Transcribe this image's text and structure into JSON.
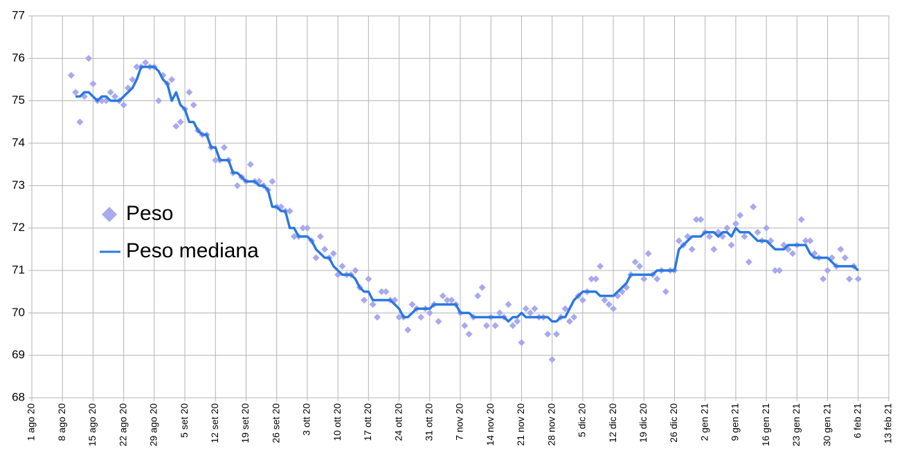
{
  "chart_data": {
    "type": "scatter",
    "x": [
      "2020-08-10",
      "2020-08-11",
      "2020-08-12",
      "2020-08-13",
      "2020-08-14",
      "2020-08-15",
      "2020-08-16",
      "2020-08-17",
      "2020-08-18",
      "2020-08-19",
      "2020-08-20",
      "2020-08-21",
      "2020-08-22",
      "2020-08-23",
      "2020-08-24",
      "2020-08-25",
      "2020-08-26",
      "2020-08-27",
      "2020-08-28",
      "2020-08-29",
      "2020-08-30",
      "2020-08-31",
      "2020-09-01",
      "2020-09-02",
      "2020-09-03",
      "2020-09-04",
      "2020-09-05",
      "2020-09-06",
      "2020-09-07",
      "2020-09-08",
      "2020-09-09",
      "2020-09-10",
      "2020-09-11",
      "2020-09-12",
      "2020-09-13",
      "2020-09-14",
      "2020-09-15",
      "2020-09-16",
      "2020-09-17",
      "2020-09-18",
      "2020-09-19",
      "2020-09-20",
      "2020-09-21",
      "2020-09-22",
      "2020-09-23",
      "2020-09-24",
      "2020-09-25",
      "2020-09-26",
      "2020-09-27",
      "2020-09-28",
      "2020-09-29",
      "2020-09-30",
      "2020-10-01",
      "2020-10-02",
      "2020-10-03",
      "2020-10-04",
      "2020-10-05",
      "2020-10-06",
      "2020-10-07",
      "2020-10-08",
      "2020-10-09",
      "2020-10-10",
      "2020-10-11",
      "2020-10-12",
      "2020-10-13",
      "2020-10-14",
      "2020-10-15",
      "2020-10-16",
      "2020-10-17",
      "2020-10-18",
      "2020-10-19",
      "2020-10-20",
      "2020-10-21",
      "2020-10-22",
      "2020-10-23",
      "2020-10-24",
      "2020-10-25",
      "2020-10-26",
      "2020-10-27",
      "2020-10-28",
      "2020-10-29",
      "2020-10-30",
      "2020-10-31",
      "2020-11-01",
      "2020-11-02",
      "2020-11-03",
      "2020-11-04",
      "2020-11-05",
      "2020-11-06",
      "2020-11-07",
      "2020-11-08",
      "2020-11-09",
      "2020-11-10",
      "2020-11-11",
      "2020-11-12",
      "2020-11-13",
      "2020-11-14",
      "2020-11-15",
      "2020-11-16",
      "2020-11-17",
      "2020-11-18",
      "2020-11-19",
      "2020-11-20",
      "2020-11-21",
      "2020-11-22",
      "2020-11-23",
      "2020-11-24",
      "2020-11-25",
      "2020-11-26",
      "2020-11-27",
      "2020-11-28",
      "2020-11-29",
      "2020-11-30",
      "2020-12-01",
      "2020-12-02",
      "2020-12-03",
      "2020-12-04",
      "2020-12-05",
      "2020-12-06",
      "2020-12-07",
      "2020-12-08",
      "2020-12-09",
      "2020-12-10",
      "2020-12-11",
      "2020-12-12",
      "2020-12-13",
      "2020-12-14",
      "2020-12-15",
      "2020-12-16",
      "2020-12-17",
      "2020-12-18",
      "2020-12-19",
      "2020-12-20",
      "2020-12-21",
      "2020-12-22",
      "2020-12-23",
      "2020-12-24",
      "2020-12-25",
      "2020-12-26",
      "2020-12-27",
      "2020-12-28",
      "2020-12-29",
      "2020-12-30",
      "2020-12-31",
      "2021-01-01",
      "2021-01-02",
      "2021-01-03",
      "2021-01-04",
      "2021-01-05",
      "2021-01-06",
      "2021-01-07",
      "2021-01-08",
      "2021-01-09",
      "2021-01-10",
      "2021-01-11",
      "2021-01-12",
      "2021-01-13",
      "2021-01-14",
      "2021-01-15",
      "2021-01-16",
      "2021-01-17",
      "2021-01-18",
      "2021-01-19",
      "2021-01-20",
      "2021-01-21",
      "2021-01-22",
      "2021-01-23",
      "2021-01-24",
      "2021-01-25",
      "2021-01-26",
      "2021-01-27",
      "2021-01-28",
      "2021-01-29",
      "2021-01-30",
      "2021-01-31",
      "2021-02-01",
      "2021-02-02",
      "2021-02-03",
      "2021-02-04",
      "2021-02-05",
      "2021-02-06"
    ],
    "series": [
      {
        "name": "Peso",
        "type": "scatter",
        "color": "#a9a9ee",
        "values": [
          75.6,
          75.2,
          74.5,
          75.1,
          76.0,
          75.4,
          75.0,
          75.0,
          75.0,
          75.2,
          75.1,
          75.0,
          74.9,
          75.3,
          75.5,
          75.8,
          75.8,
          75.9,
          75.8,
          75.8,
          75.0,
          75.6,
          75.4,
          75.5,
          74.4,
          74.5,
          74.8,
          75.2,
          74.9,
          74.3,
          74.2,
          74.2,
          73.9,
          73.6,
          73.6,
          73.9,
          73.6,
          73.3,
          73.0,
          73.2,
          73.1,
          73.5,
          73.1,
          73.1,
          73.0,
          72.9,
          73.1,
          72.5,
          72.5,
          72.4,
          72.4,
          71.8,
          71.8,
          72.0,
          72.0,
          71.7,
          71.3,
          71.8,
          71.5,
          71.3,
          71.4,
          70.9,
          71.1,
          70.9,
          70.9,
          71.0,
          70.6,
          70.3,
          70.8,
          70.2,
          69.9,
          70.5,
          70.5,
          70.3,
          70.3,
          69.9,
          69.9,
          69.6,
          70.2,
          70.1,
          69.9,
          70.1,
          70.0,
          70.2,
          69.8,
          70.4,
          70.3,
          70.3,
          70.2,
          70.0,
          69.7,
          69.5,
          69.9,
          70.4,
          70.6,
          69.7,
          69.9,
          69.7,
          70.0,
          69.9,
          70.2,
          69.7,
          69.8,
          69.3,
          70.1,
          70.0,
          70.1,
          69.9,
          69.9,
          69.5,
          68.9,
          69.5,
          69.9,
          70.1,
          69.8,
          69.9,
          70.4,
          70.3,
          70.5,
          70.8,
          70.8,
          71.1,
          70.3,
          70.2,
          70.1,
          70.4,
          70.5,
          70.6,
          70.9,
          71.2,
          71.1,
          70.8,
          71.4,
          70.9,
          70.8,
          71.0,
          70.5,
          71.0,
          71.0,
          71.7,
          71.6,
          71.8,
          71.5,
          72.2,
          72.2,
          71.9,
          71.8,
          71.5,
          71.9,
          71.8,
          72.0,
          71.6,
          72.1,
          72.3,
          71.8,
          71.2,
          72.5,
          71.9,
          71.7,
          72.0,
          71.7,
          71.0,
          71.0,
          71.6,
          71.5,
          71.4,
          71.6,
          72.2,
          71.7,
          71.7,
          71.4,
          71.3,
          70.8,
          71.0,
          71.3,
          71.1,
          71.5,
          71.3,
          70.8,
          71.1,
          70.8
        ]
      },
      {
        "name": "Peso mediana",
        "type": "line",
        "color": "#2a78e0",
        "values": [
          null,
          75.1,
          75.1,
          75.2,
          75.2,
          75.1,
          75.0,
          75.1,
          75.1,
          75.0,
          75.0,
          75.0,
          75.1,
          75.2,
          75.3,
          75.5,
          75.8,
          75.8,
          75.8,
          75.8,
          75.7,
          75.5,
          75.4,
          75.0,
          75.2,
          74.9,
          74.8,
          74.5,
          74.5,
          74.3,
          74.2,
          74.2,
          73.9,
          73.9,
          73.6,
          73.6,
          73.6,
          73.3,
          73.3,
          73.2,
          73.1,
          73.1,
          73.1,
          73.0,
          73.0,
          72.9,
          72.5,
          72.5,
          72.4,
          72.4,
          72.0,
          72.0,
          71.8,
          71.8,
          71.8,
          71.7,
          71.5,
          71.4,
          71.3,
          71.3,
          71.1,
          71.0,
          70.9,
          70.9,
          70.9,
          70.8,
          70.6,
          70.5,
          70.5,
          70.3,
          70.3,
          70.3,
          70.3,
          70.3,
          70.2,
          70.1,
          69.9,
          69.9,
          70.0,
          70.1,
          70.1,
          70.1,
          70.1,
          70.2,
          70.2,
          70.2,
          70.2,
          70.2,
          70.2,
          70.0,
          70.0,
          70.0,
          69.9,
          69.9,
          69.9,
          69.9,
          69.9,
          69.9,
          69.9,
          69.9,
          69.8,
          69.9,
          69.9,
          70.0,
          69.9,
          69.9,
          69.9,
          69.9,
          69.9,
          69.9,
          69.8,
          69.8,
          69.9,
          69.9,
          70.1,
          70.3,
          70.4,
          70.5,
          70.5,
          70.5,
          70.5,
          70.4,
          70.4,
          70.4,
          70.4,
          70.5,
          70.6,
          70.7,
          70.9,
          70.9,
          70.9,
          70.9,
          70.9,
          70.9,
          71.0,
          71.0,
          71.0,
          71.0,
          71.0,
          71.5,
          71.6,
          71.7,
          71.8,
          71.8,
          71.8,
          71.9,
          71.9,
          71.9,
          71.8,
          71.9,
          71.9,
          71.8,
          72.0,
          71.9,
          71.9,
          71.9,
          71.8,
          71.7,
          71.7,
          71.7,
          71.6,
          71.5,
          71.5,
          71.5,
          71.6,
          71.6,
          71.6,
          71.6,
          71.6,
          71.4,
          71.3,
          71.3,
          71.3,
          71.3,
          71.2,
          71.1,
          71.1,
          71.1,
          71.1,
          71.1,
          71.0
        ]
      }
    ],
    "xlim": [
      "2020-08-01",
      "2021-02-13"
    ],
    "xticks": [
      {
        "value": "2020-08-01",
        "label": "1 ago 20"
      },
      {
        "value": "2020-08-08",
        "label": "8 ago 20"
      },
      {
        "value": "2020-08-15",
        "label": "15 ago 20"
      },
      {
        "value": "2020-08-22",
        "label": "22 ago 20"
      },
      {
        "value": "2020-08-29",
        "label": "29 ago 20"
      },
      {
        "value": "2020-09-05",
        "label": "5 set 20"
      },
      {
        "value": "2020-09-12",
        "label": "12 set 20"
      },
      {
        "value": "2020-09-19",
        "label": "19 set 20"
      },
      {
        "value": "2020-09-26",
        "label": "26 set 20"
      },
      {
        "value": "2020-10-03",
        "label": "3 ott 20"
      },
      {
        "value": "2020-10-10",
        "label": "10 ott 20"
      },
      {
        "value": "2020-10-17",
        "label": "17 ott 20"
      },
      {
        "value": "2020-10-24",
        "label": "24 ott 20"
      },
      {
        "value": "2020-10-31",
        "label": "31 ott 20"
      },
      {
        "value": "2020-11-07",
        "label": "7 nov 20"
      },
      {
        "value": "2020-11-14",
        "label": "14 nov 20"
      },
      {
        "value": "2020-11-21",
        "label": "21 nov 20"
      },
      {
        "value": "2020-11-28",
        "label": "28 nov 20"
      },
      {
        "value": "2020-12-05",
        "label": "5 dic 20"
      },
      {
        "value": "2020-12-12",
        "label": "12 dic 20"
      },
      {
        "value": "2020-12-19",
        "label": "19 dic 20"
      },
      {
        "value": "2020-12-26",
        "label": "26 dic 20"
      },
      {
        "value": "2021-01-02",
        "label": "2 gen 21"
      },
      {
        "value": "2021-01-09",
        "label": "9 gen 21"
      },
      {
        "value": "2021-01-16",
        "label": "16 gen 21"
      },
      {
        "value": "2021-01-23",
        "label": "23 gen 21"
      },
      {
        "value": "2021-01-30",
        "label": "30 gen 21"
      },
      {
        "value": "2021-02-06",
        "label": "6 feb 21"
      },
      {
        "value": "2021-02-13",
        "label": "13 feb 21"
      }
    ],
    "ylim": [
      68,
      77
    ],
    "yticks": [
      68,
      69,
      70,
      71,
      72,
      73,
      74,
      75,
      76,
      77
    ],
    "grid": true,
    "legend": "left"
  }
}
